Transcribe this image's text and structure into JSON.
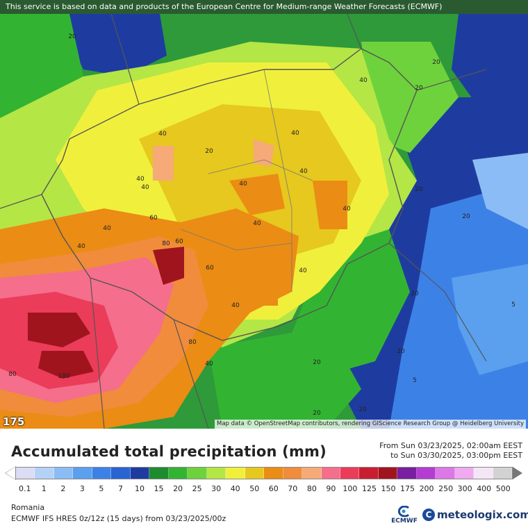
{
  "banner": {
    "text": "This service is based on data and products of the European Centre for Medium-range Weather Forecasts (ECMWF)"
  },
  "map": {
    "credit": "Map data © OpenStreetMap contributors, rendering GIScience Research Group @ Heidelberg University",
    "badge": "175",
    "contour_labels": [
      "20",
      "20",
      "40",
      "20",
      "40",
      "40",
      "20",
      "40",
      "40",
      "40",
      "20",
      "40",
      "60",
      "40",
      "40",
      "40",
      "60",
      "80",
      "60",
      "40",
      "40",
      "20",
      "20",
      "40",
      "20",
      "5",
      "80",
      "40",
      "20",
      "5",
      "20",
      "100",
      "80",
      "20"
    ]
  },
  "title": "Accumulated total precipitation (mm)",
  "dates": {
    "from": "From Sun 03/23/2025, 02:00am EEST",
    "to": "to Sun 03/30/2025, 03:00pm EEST"
  },
  "legend": {
    "ticks": [
      "0.1",
      "1",
      "2",
      "3",
      "5",
      "7",
      "10",
      "15",
      "20",
      "25",
      "30",
      "40",
      "50",
      "60",
      "70",
      "80",
      "90",
      "100",
      "125",
      "150",
      "175",
      "200",
      "250",
      "300",
      "400",
      "500"
    ],
    "colors": [
      "#dcdcf5",
      "#b4d2f8",
      "#8cbcf5",
      "#5aa0ee",
      "#3c82e6",
      "#2864d2",
      "#1e3ca0",
      "#1e8c2d",
      "#32b432",
      "#6ed23c",
      "#b4e646",
      "#f0f03c",
      "#e6c81e",
      "#eb8c14",
      "#f08c3c",
      "#f5aa78",
      "#f56e8c",
      "#eb3c5a",
      "#c81e32",
      "#a0141e",
      "#781ea0",
      "#b43cd2",
      "#dc78e6",
      "#f0aaf0",
      "#f5e6f5",
      "#d2d2d2"
    ]
  },
  "region": "Romania",
  "model": "ECMWF IFS HRES 0z/12z (15 days) from  03/23/2025/00z",
  "logos": {
    "ecmwf": "ECMWF",
    "meteologix": "meteologix.com",
    "meteologix_icon": "C"
  }
}
